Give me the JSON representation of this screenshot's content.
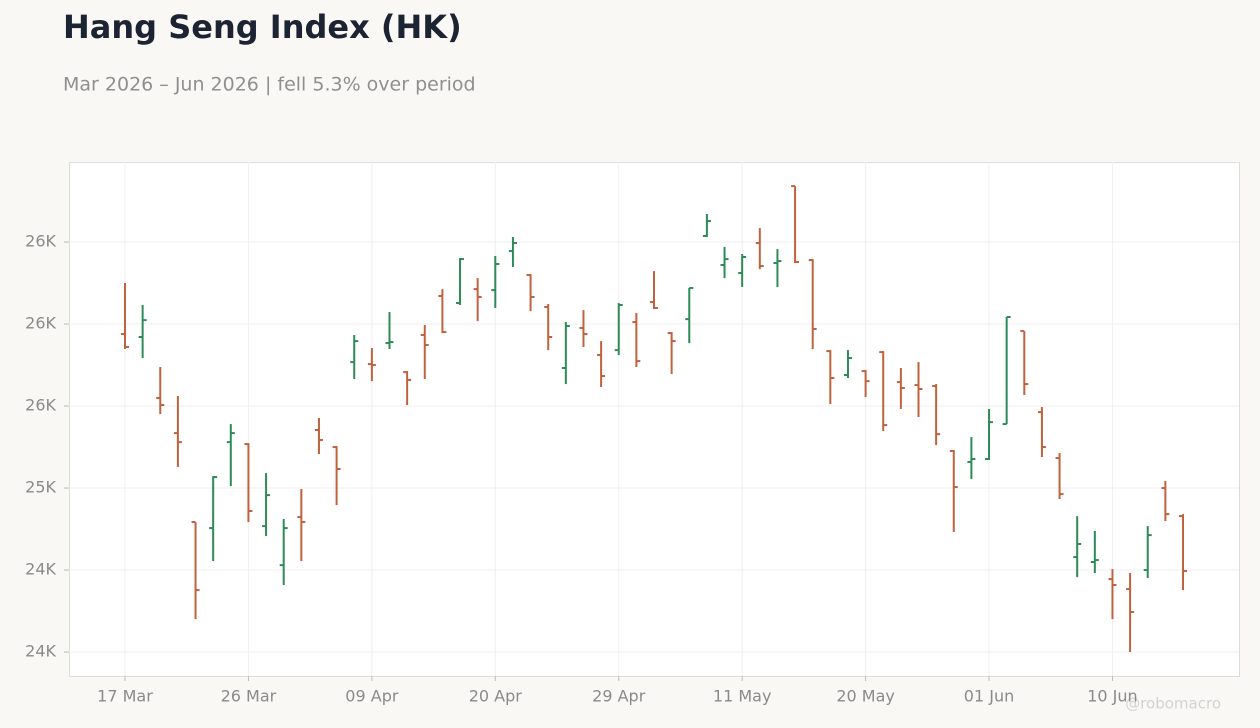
{
  "chart_data": {
    "type": "ohlc",
    "title": "Hang Seng Index (HK)",
    "subtitle": "Mar 2026 – Jun 2026 | fell 5.3% over period",
    "watermark": "@robomacro",
    "up_color": "#2e8b57",
    "down_color": "#c0623d",
    "grid": true,
    "categories": [
      "17 Mar",
      null,
      null,
      null,
      null,
      null,
      null,
      "26 Mar",
      null,
      null,
      null,
      null,
      null,
      null,
      "09 Apr",
      null,
      null,
      null,
      null,
      null,
      null,
      "20 Apr",
      null,
      null,
      null,
      null,
      null,
      null,
      "29 Apr",
      null,
      null,
      null,
      null,
      null,
      null,
      "11 May",
      null,
      null,
      null,
      null,
      null,
      null,
      "20 May",
      null,
      null,
      null,
      null,
      null,
      null,
      "01 Jun",
      null,
      null,
      null,
      null,
      null,
      null,
      "10 Jun",
      null,
      null,
      null,
      null
    ],
    "open": [
      25939,
      25921,
      25549,
      25335,
      24793,
      24756,
      25280,
      25268,
      24768,
      24530,
      24823,
      25354,
      25250,
      25768,
      25756,
      25884,
      25707,
      25933,
      26171,
      26128,
      26213,
      26207,
      26445,
      26299,
      26104,
      25732,
      25976,
      25811,
      25841,
      26012,
      26134,
      25945,
      26030,
      26537,
      26360,
      26311,
      26494,
      26372,
      26841,
      26390,
      25835,
      25689,
      25713,
      25829,
      25646,
      25628,
      25622,
      25226,
      25159,
      25177,
      25390,
      25957,
      25463,
      25183,
      24579,
      24549,
      24445,
      24384,
      24500,
      25000,
      24829
    ],
    "high": [
      26250,
      26116,
      25738,
      25561,
      24793,
      25073,
      25390,
      25274,
      25091,
      24811,
      24994,
      25427,
      25256,
      25933,
      25854,
      26073,
      25713,
      25994,
      26213,
      26402,
      26280,
      26415,
      26531,
      26305,
      26122,
      26012,
      26085,
      25896,
      26128,
      26067,
      26323,
      25951,
      26220,
      26671,
      26470,
      26427,
      26585,
      26457,
      26841,
      26396,
      25841,
      25841,
      25720,
      25835,
      25732,
      25768,
      25634,
      25232,
      25311,
      25482,
      26043,
      25957,
      25494,
      25213,
      24829,
      24738,
      24506,
      24482,
      24768,
      25043,
      24841
    ],
    "low": [
      25848,
      25793,
      25451,
      25128,
      24201,
      24555,
      25012,
      24793,
      24707,
      24409,
      24555,
      25207,
      24896,
      25665,
      25652,
      25848,
      25506,
      25665,
      25945,
      26116,
      26018,
      26098,
      26348,
      26079,
      25841,
      25634,
      25860,
      25616,
      25811,
      25738,
      26091,
      25695,
      25884,
      26531,
      26280,
      26226,
      26335,
      26226,
      26372,
      25848,
      25512,
      25671,
      25555,
      25348,
      25482,
      25433,
      25262,
      24732,
      25055,
      25171,
      25390,
      25567,
      25189,
      24933,
      24457,
      24482,
      24201,
      24000,
      24451,
      24799,
      24378
    ],
    "close": [
      25860,
      26024,
      25506,
      25280,
      24378,
      25067,
      25335,
      24860,
      24957,
      24756,
      24793,
      25293,
      25116,
      25896,
      25750,
      25890,
      25659,
      25872,
      25951,
      26396,
      26165,
      26366,
      26494,
      26165,
      25921,
      25988,
      25939,
      25683,
      26116,
      25774,
      26098,
      25896,
      26220,
      26628,
      26396,
      26409,
      26354,
      26384,
      26378,
      25970,
      25671,
      25793,
      25652,
      25384,
      25610,
      25604,
      25329,
      25006,
      25177,
      25402,
      26043,
      25634,
      25250,
      24963,
      24659,
      24561,
      24409,
      24244,
      24713,
      24841,
      24494
    ],
    "ylim": [
      23854,
      26988
    ],
    "yticks": [
      {
        "value": 24000,
        "label": "24K"
      },
      {
        "value": 24500,
        "label": "24K"
      },
      {
        "value": 25000,
        "label": "25K"
      },
      {
        "value": 25500,
        "label": "26K"
      },
      {
        "value": 26000,
        "label": "26K"
      },
      {
        "value": 26500,
        "label": "26K"
      }
    ]
  }
}
